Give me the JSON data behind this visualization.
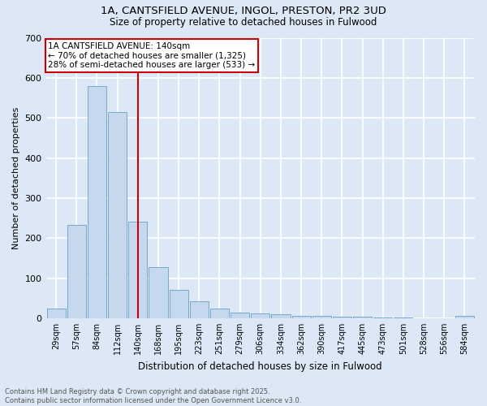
{
  "title_line1": "1A, CANTSFIELD AVENUE, INGOL, PRESTON, PR2 3UD",
  "title_line2": "Size of property relative to detached houses in Fulwood",
  "xlabel": "Distribution of detached houses by size in Fulwood",
  "ylabel": "Number of detached properties",
  "bar_color": "#c5d8ed",
  "bar_edge_color": "#6a9fc8",
  "ref_line_color": "#cc0000",
  "annotation_title": "1A CANTSFIELD AVENUE: 140sqm",
  "annotation_line2": "← 70% of detached houses are smaller (1,325)",
  "annotation_line3": "28% of semi-detached houses are larger (533) →",
  "annotation_box_color": "#cc0000",
  "annotation_fill": "white",
  "background_color": "#dce8f5",
  "plot_bg_color": "#dce8f5",
  "grid_color": "white",
  "categories": [
    "29sqm",
    "57sqm",
    "84sqm",
    "112sqm",
    "140sqm",
    "168sqm",
    "195sqm",
    "223sqm",
    "251sqm",
    "279sqm",
    "306sqm",
    "334sqm",
    "362sqm",
    "390sqm",
    "417sqm",
    "445sqm",
    "473sqm",
    "501sqm",
    "528sqm",
    "556sqm",
    "584sqm"
  ],
  "values": [
    25,
    233,
    580,
    515,
    240,
    127,
    70,
    42,
    25,
    15,
    12,
    11,
    5,
    5,
    4,
    3,
    2,
    1,
    0,
    0,
    5
  ],
  "ref_bar_index": 4,
  "ylim": [
    0,
    700
  ],
  "yticks": [
    0,
    100,
    200,
    300,
    400,
    500,
    600,
    700
  ],
  "footer_line1": "Contains HM Land Registry data © Crown copyright and database right 2025.",
  "footer_line2": "Contains public sector information licensed under the Open Government Licence v3.0."
}
